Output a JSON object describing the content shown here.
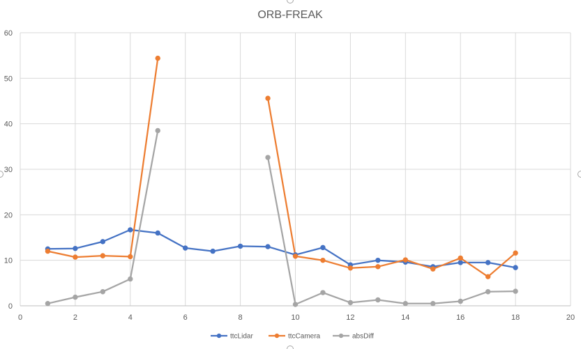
{
  "chart_data": {
    "type": "line",
    "title": "ORB-FREAK",
    "xlabel": "",
    "ylabel": "",
    "xlim": [
      0,
      20
    ],
    "ylim": [
      0,
      60
    ],
    "x_ticks": [
      0,
      2,
      4,
      6,
      8,
      10,
      12,
      14,
      16,
      18,
      20
    ],
    "y_ticks": [
      0,
      10,
      20,
      30,
      40,
      50,
      60
    ],
    "grid": true,
    "legend_position": "bottom",
    "series": [
      {
        "name": "ttcLidar",
        "color": "#4472C4",
        "x": [
          1,
          2,
          3,
          4,
          5,
          6,
          7,
          8,
          9,
          10,
          11,
          12,
          13,
          14,
          15,
          16,
          17,
          18
        ],
        "values": [
          12.5,
          12.6,
          14.1,
          16.7,
          16.0,
          12.7,
          12.0,
          13.1,
          13.0,
          11.2,
          12.8,
          9.0,
          10.0,
          9.6,
          8.6,
          9.5,
          9.5,
          8.4
        ]
      },
      {
        "name": "ttcCamera",
        "color": "#ED7D31",
        "x": [
          1,
          2,
          3,
          4,
          5,
          null,
          null,
          null,
          9,
          10,
          11,
          12,
          13,
          14,
          15,
          16,
          17,
          18
        ],
        "values": [
          12.0,
          10.7,
          11.0,
          10.8,
          54.4,
          null,
          null,
          null,
          45.6,
          10.9,
          10.0,
          8.3,
          8.6,
          10.1,
          8.1,
          10.5,
          6.4,
          11.6
        ]
      },
      {
        "name": "absDiff",
        "color": "#A5A5A5",
        "x": [
          1,
          2,
          3,
          4,
          5,
          null,
          null,
          null,
          9,
          10,
          11,
          12,
          13,
          14,
          15,
          16,
          17,
          18
        ],
        "values": [
          0.5,
          1.9,
          3.1,
          5.9,
          38.5,
          null,
          null,
          null,
          32.6,
          0.3,
          2.9,
          0.7,
          1.3,
          0.5,
          0.5,
          1.0,
          3.1,
          3.2
        ]
      }
    ]
  }
}
